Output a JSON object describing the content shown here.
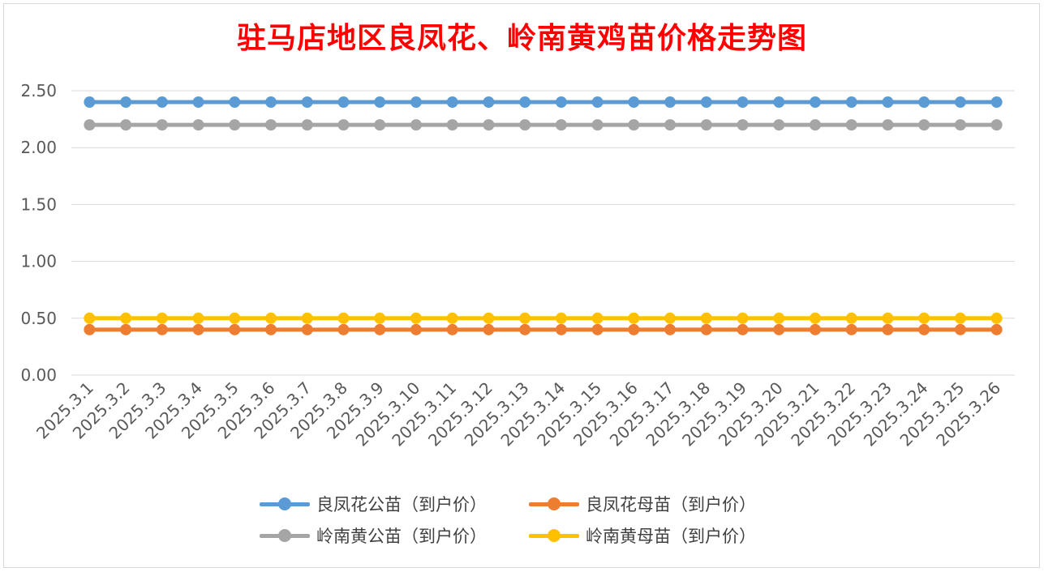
{
  "title": "驻马店地区良凤花、岭南黄鸡苗价格走势图",
  "chart_data": {
    "type": "line",
    "title": "驻马店地区良凤花、岭南黄鸡苗价格走势图",
    "categories": [
      "2025.3.1",
      "2025.3.2",
      "2025.3.3",
      "2025.3.4",
      "2025.3.5",
      "2025.3.6",
      "2025.3.7",
      "2025.3.8",
      "2025.3.9",
      "2025.3.10",
      "2025.3.11",
      "2025.3.12",
      "2025.3.13",
      "2025.3.14",
      "2025.3.15",
      "2025.3.16",
      "2025.3.17",
      "2025.3.18",
      "2025.3.19",
      "2025.3.20",
      "2025.3.21",
      "2025.3.22",
      "2025.3.23",
      "2025.3.24",
      "2025.3.25",
      "2025.3.26"
    ],
    "yticks": [
      "0.00",
      "0.50",
      "1.00",
      "1.50",
      "2.00",
      "2.50"
    ],
    "ylim": [
      0,
      2.5
    ],
    "grid": true,
    "legend_position": "bottom",
    "series": [
      {
        "name": "良凤花公苗（到户价）",
        "color": "#5b9bd5",
        "values": [
          2.4,
          2.4,
          2.4,
          2.4,
          2.4,
          2.4,
          2.4,
          2.4,
          2.4,
          2.4,
          2.4,
          2.4,
          2.4,
          2.4,
          2.4,
          2.4,
          2.4,
          2.4,
          2.4,
          2.4,
          2.4,
          2.4,
          2.4,
          2.4,
          2.4,
          2.4
        ]
      },
      {
        "name": "良凤花母苗（到户价）",
        "color": "#ed7d31",
        "values": [
          0.4,
          0.4,
          0.4,
          0.4,
          0.4,
          0.4,
          0.4,
          0.4,
          0.4,
          0.4,
          0.4,
          0.4,
          0.4,
          0.4,
          0.4,
          0.4,
          0.4,
          0.4,
          0.4,
          0.4,
          0.4,
          0.4,
          0.4,
          0.4,
          0.4,
          0.4
        ]
      },
      {
        "name": "岭南黄公苗（到户价）",
        "color": "#a5a5a5",
        "values": [
          2.2,
          2.2,
          2.2,
          2.2,
          2.2,
          2.2,
          2.2,
          2.2,
          2.2,
          2.2,
          2.2,
          2.2,
          2.2,
          2.2,
          2.2,
          2.2,
          2.2,
          2.2,
          2.2,
          2.2,
          2.2,
          2.2,
          2.2,
          2.2,
          2.2,
          2.2
        ]
      },
      {
        "name": "岭南黄母苗（到户价）",
        "color": "#ffc000",
        "values": [
          0.5,
          0.5,
          0.5,
          0.5,
          0.5,
          0.5,
          0.5,
          0.5,
          0.5,
          0.5,
          0.5,
          0.5,
          0.5,
          0.5,
          0.5,
          0.5,
          0.5,
          0.5,
          0.5,
          0.5,
          0.5,
          0.5,
          0.5,
          0.5,
          0.5,
          0.5
        ]
      }
    ]
  }
}
